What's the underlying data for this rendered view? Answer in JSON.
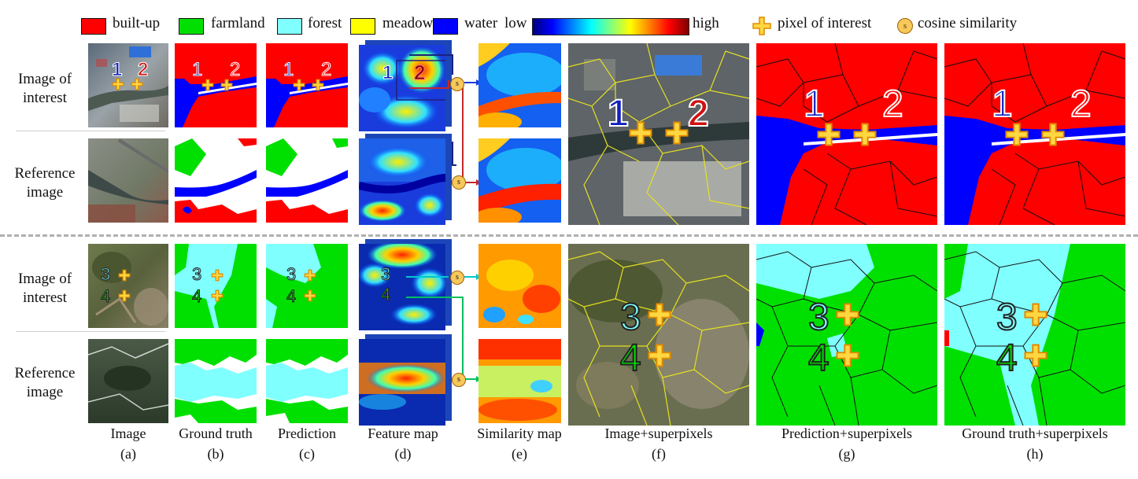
{
  "legend": {
    "classes": [
      {
        "label": "built-up",
        "color": "#ff0000"
      },
      {
        "label": "farmland",
        "color": "#00e000"
      },
      {
        "label": "forest",
        "color": "#80ffff"
      },
      {
        "label": "meadow",
        "color": "#ffff00"
      },
      {
        "label": "water",
        "color": "#0000ff"
      }
    ],
    "colorbar": {
      "low_label": "low",
      "high_label": "high"
    },
    "pixel_of_interest": "pixel of interest",
    "cosine_similarity": "cosine similarity",
    "cosine_symbol": "s"
  },
  "row_labels": {
    "top_interest": [
      "Image of",
      "interest"
    ],
    "top_reference": [
      "Reference",
      "image"
    ],
    "bottom_interest": [
      "Image of",
      "interest"
    ],
    "bottom_reference": [
      "Reference",
      "image"
    ]
  },
  "markers": {
    "one": "1",
    "two": "2",
    "three": "3",
    "four": "4"
  },
  "columns": [
    {
      "title": "Image",
      "letter": "(a)"
    },
    {
      "title": "Ground truth",
      "letter": "(b)"
    },
    {
      "title": "Prediction",
      "letter": "(c)"
    },
    {
      "title": "Feature map",
      "letter": "(d)"
    },
    {
      "title": "Similarity map",
      "letter": "(e)"
    },
    {
      "title": "Image+superpixels",
      "letter": "(f)"
    },
    {
      "title": "Prediction+superpixels",
      "letter": "(g)"
    },
    {
      "title": "Ground truth+superpixels",
      "letter": "(h)"
    }
  ]
}
